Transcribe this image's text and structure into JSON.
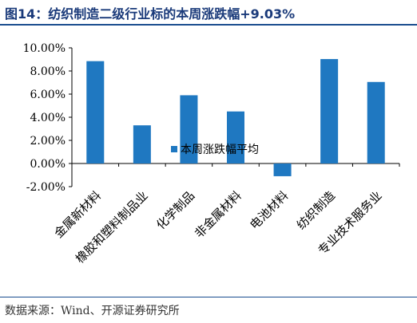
{
  "title": "图14：纺织制造二级行业标的本周涨跌幅+9.03%",
  "source": "数据来源：Wind、开源证券研究所",
  "chart_data": {
    "type": "bar",
    "categories": [
      "金属新材料",
      "橡胶和塑料制品业",
      "化学制品",
      "非金属材料",
      "电池材料",
      "纺织制造",
      "专业技术服务业"
    ],
    "series": [
      {
        "name": "本周涨跌幅平均",
        "values": [
          8.85,
          3.3,
          5.9,
          4.5,
          -1.1,
          9.03,
          7.05
        ],
        "color": "#1f78c1"
      }
    ],
    "yticks": [
      "10.00%",
      "8.00%",
      "6.00%",
      "4.00%",
      "2.00%",
      "0.00%",
      "-2.00%"
    ],
    "ylim": [
      -2,
      10
    ],
    "legend_position": "center",
    "grid": false
  }
}
